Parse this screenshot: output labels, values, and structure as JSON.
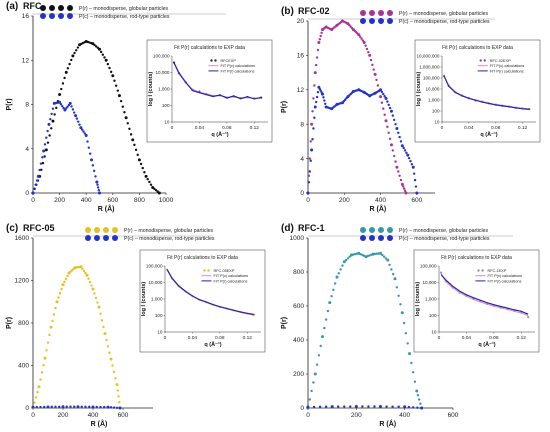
{
  "chart_data": [
    {
      "type": "scatter",
      "panel_label": "(a)",
      "sample_label": "RFC",
      "xlabel": "R (Å)",
      "ylabel": "P(r)",
      "xlim": [
        0,
        1000
      ],
      "ylim": [
        0,
        16
      ],
      "x_ticks": [
        0,
        200,
        400,
        600,
        800,
        1000
      ],
      "y_ticks": [
        0,
        4,
        8,
        12,
        16
      ],
      "legend": [
        "P(r) – monodisperse, globular particles",
        "P(c) – monodisperse, rod-type particles"
      ],
      "series": [
        {
          "name": "P(r) – monodisperse, globular particles",
          "color": "#111111",
          "x": [
            0,
            50,
            100,
            150,
            200,
            250,
            300,
            350,
            400,
            450,
            500,
            550,
            600,
            650,
            700,
            750,
            800,
            850,
            900,
            950
          ],
          "y": [
            0,
            1.5,
            3.9,
            6.5,
            8.9,
            10.9,
            12.4,
            13.4,
            13.7,
            13.5,
            13.0,
            12.0,
            10.6,
            8.8,
            6.8,
            4.8,
            3.0,
            1.5,
            0.5,
            0
          ]
        },
        {
          "name": "P(c) – monodisperse, rod-type particles",
          "color": "#2233cc",
          "x": [
            0,
            40,
            80,
            120,
            160,
            200,
            240,
            280,
            320,
            360,
            400,
            440,
            480,
            500
          ],
          "y": [
            0,
            1.5,
            3.8,
            6.2,
            8.1,
            8.2,
            7.5,
            8.1,
            7.0,
            5.9,
            5.2,
            3.0,
            1.0,
            0
          ]
        }
      ],
      "inset": {
        "title": "Fit P(r) calculations to EXP data",
        "xlabel": "q (Å⁻¹)",
        "ylabel": "log I (counts)",
        "x_ticks": [
          "0",
          "0.04",
          "0.08",
          "0.12"
        ],
        "y_ticks": [
          "10",
          "100",
          "1,000",
          "10,000",
          "100,000"
        ],
        "legend": [
          "RFCEXP",
          "FIT P(c) calculations",
          "FIT P(r) calculations"
        ],
        "xlim": [
          0,
          0.14
        ],
        "ylim_log": [
          1,
          5
        ],
        "series": [
          {
            "name": "RFCEXP",
            "color": "#333333",
            "x": [
              0.003,
              0.01,
              0.02,
              0.03,
              0.04,
              0.05,
              0.06,
              0.07,
              0.08,
              0.09,
              0.1,
              0.11,
              0.12,
              0.13
            ],
            "y": [
              40000,
              9000,
              2500,
              900,
              700,
              500,
              380,
              420,
              300,
              360,
              280,
              330,
              270,
              300
            ]
          },
          {
            "name": "FIT P(c) calculations",
            "color": "#dd88cc",
            "x": [
              0.003,
              0.01,
              0.02,
              0.03,
              0.04,
              0.05,
              0.06,
              0.07,
              0.08,
              0.09,
              0.1,
              0.11,
              0.12,
              0.13
            ],
            "y": [
              35000,
              8500,
              2400,
              950,
              650,
              520,
              400,
              380,
              330,
              320,
              300,
              290,
              280,
              270
            ]
          },
          {
            "name": "FIT P(r) calculations",
            "color": "#2222aa",
            "x": [
              0.003,
              0.01,
              0.02,
              0.03,
              0.04,
              0.05,
              0.06,
              0.07,
              0.08,
              0.09,
              0.1,
              0.11,
              0.12,
              0.13
            ],
            "y": [
              38000,
              9500,
              2600,
              800,
              600,
              450,
              350,
              430,
              280,
              380,
              260,
              340,
              250,
              310
            ]
          }
        ]
      }
    },
    {
      "type": "scatter",
      "panel_label": "(b)",
      "sample_label": "RFC-02",
      "xlabel": "R (Å)",
      "ylabel": "P(r)",
      "xlim": [
        0,
        700
      ],
      "ylim": [
        0,
        20
      ],
      "x_ticks": [
        0,
        200,
        400,
        600
      ],
      "y_ticks": [
        0,
        4,
        8,
        12,
        16,
        20
      ],
      "legend": [
        "P(r) – monodisperse, globular particles",
        "P(c) – monodisperse, rod-type particles"
      ],
      "series": [
        {
          "name": "P(r) – monodisperse, globular particles",
          "color": "#aa3399",
          "x": [
            0,
            20,
            40,
            60,
            80,
            100,
            130,
            160,
            190,
            220,
            250,
            280,
            310,
            340,
            370,
            400,
            430,
            460,
            490,
            520,
            540
          ],
          "y": [
            0,
            8.0,
            14.0,
            17.5,
            19.0,
            19.3,
            19.0,
            19.5,
            20.0,
            19.7,
            19.0,
            18.4,
            17.5,
            16.0,
            13.8,
            11.2,
            8.4,
            5.6,
            3.0,
            1.0,
            0
          ]
        },
        {
          "name": "P(c) – monodisperse, rod-type particles",
          "color": "#2233cc",
          "x": [
            0,
            20,
            40,
            60,
            80,
            100,
            130,
            160,
            190,
            220,
            250,
            280,
            310,
            340,
            370,
            400,
            430,
            460,
            490,
            520,
            550,
            580,
            600
          ],
          "y": [
            0,
            5.0,
            10.0,
            12.3,
            11.5,
            10.0,
            9.8,
            10.3,
            10.5,
            11.2,
            11.8,
            12.0,
            11.7,
            11.3,
            11.6,
            12.0,
            11.0,
            9.5,
            7.5,
            5.5,
            4.4,
            3.0,
            0
          ]
        }
      ],
      "inset": {
        "title": "Fit P(r) calculations to EXP data",
        "xlabel": "q (Å⁻¹)",
        "ylabel": "log I (counts)",
        "x_ticks": [
          "0",
          "0.04",
          "0.08",
          "0.12"
        ],
        "y_ticks": [
          "10",
          "100",
          "1,000",
          "10,000",
          "100,000",
          "1,000,000",
          "10,000,000"
        ],
        "legend": [
          "RFC-02EXP",
          "FIT P(c) calculations",
          "FIT P(r) calculations"
        ],
        "xlim": [
          0,
          0.14
        ],
        "ylim_log": [
          1,
          7
        ],
        "series": [
          {
            "name": "RFC-02EXP",
            "color": "#9944aa",
            "x": [
              0.003,
              0.01,
              0.02,
              0.03,
              0.04,
              0.05,
              0.06,
              0.07,
              0.08,
              0.09,
              0.1,
              0.11,
              0.12,
              0.13
            ],
            "y": [
              150000,
              20000,
              5000,
              2500,
              1500,
              900,
              700,
              500,
              380,
              300,
              250,
              200,
              170,
              150
            ]
          },
          {
            "name": "FIT P(c) calculations",
            "color": "#dd88cc",
            "x": [
              0.003,
              0.01,
              0.02,
              0.03,
              0.04,
              0.05,
              0.06,
              0.07,
              0.08,
              0.09,
              0.1,
              0.11,
              0.12,
              0.13
            ],
            "y": [
              140000,
              22000,
              5500,
              2600,
              1500,
              1000,
              700,
              520,
              400,
              320,
              260,
              210,
              180,
              160
            ]
          },
          {
            "name": "FIT P(r) calculations",
            "color": "#2222aa",
            "x": [
              0.003,
              0.01,
              0.02,
              0.03,
              0.04,
              0.05,
              0.06,
              0.07,
              0.08,
              0.09,
              0.1,
              0.11,
              0.12,
              0.13
            ],
            "y": [
              160000,
              18000,
              4800,
              2400,
              1400,
              950,
              650,
              480,
              360,
              290,
              240,
              190,
              160,
              140
            ]
          }
        ]
      }
    },
    {
      "type": "scatter",
      "panel_label": "(c)",
      "sample_label": "RFC-05",
      "xlabel": "R (Å)",
      "ylabel": "P(r)",
      "xlim": [
        0,
        800
      ],
      "ylim": [
        0,
        1600
      ],
      "x_ticks": [
        0,
        200,
        400,
        600
      ],
      "y_ticks": [
        0,
        400,
        800,
        1200,
        1600
      ],
      "legend": [
        "P(r) – monodisperse, globular particles",
        "P(c) – monodisperse, rod-type particles"
      ],
      "series": [
        {
          "name": "P(r) – monodisperse, globular particles",
          "color": "#e8c020",
          "x": [
            0,
            40,
            80,
            120,
            160,
            200,
            240,
            280,
            320,
            360,
            400,
            440,
            480,
            520,
            560,
            580
          ],
          "y": [
            0,
            200,
            470,
            760,
            1000,
            1160,
            1270,
            1320,
            1330,
            1250,
            1120,
            950,
            700,
            460,
            220,
            0
          ]
        },
        {
          "name": "P(c) – monodisperse, rod-type particles",
          "color": "#2233cc",
          "x": [
            0,
            100,
            200,
            300,
            400,
            500,
            580
          ],
          "y": [
            8,
            10,
            12,
            12,
            10,
            8,
            0
          ]
        }
      ],
      "inset": {
        "title": "Fit P(r) calculations to EXP data",
        "xlabel": "q (Å⁻¹)",
        "ylabel": "log I (counts)",
        "x_ticks": [
          "0",
          "0.04",
          "0.08",
          "0.12"
        ],
        "y_ticks": [
          "10",
          "100",
          "1,000",
          "10,000",
          "100,000"
        ],
        "legend": [
          "RFC-05EXP",
          "FIT P(c) calculations",
          "FIT P(r) calculations"
        ],
        "xlim": [
          0,
          0.14
        ],
        "ylim_log": [
          1,
          5
        ],
        "series": [
          {
            "name": "RFC-05EXP",
            "color": "#e8c020",
            "x": [
              0.003,
              0.01,
              0.02,
              0.03,
              0.04,
              0.05,
              0.06,
              0.07,
              0.08,
              0.09,
              0.1,
              0.11,
              0.12,
              0.13
            ],
            "y": [
              60000,
              18000,
              6000,
              2800,
              1500,
              900,
              650,
              450,
              330,
              260,
              200,
              160,
              130,
              110
            ]
          },
          {
            "name": "FIT P(c) calculations",
            "color": "#dd88cc",
            "x": [
              0.003,
              0.01,
              0.02,
              0.03,
              0.04,
              0.05,
              0.06,
              0.07,
              0.08,
              0.09,
              0.1,
              0.11,
              0.12,
              0.13
            ],
            "y": [
              58000,
              17000,
              5800,
              2700,
              1450,
              880,
              620,
              440,
              320,
              250,
              195,
              155,
              125,
              105
            ]
          },
          {
            "name": "FIT P(r) calculations",
            "color": "#2222aa",
            "x": [
              0.003,
              0.01,
              0.02,
              0.03,
              0.04,
              0.05,
              0.06,
              0.07,
              0.08,
              0.09,
              0.1,
              0.11,
              0.12,
              0.13
            ],
            "y": [
              62000,
              19000,
              6200,
              2900,
              1550,
              920,
              670,
              460,
              340,
              270,
              210,
              165,
              135,
              115
            ]
          }
        ]
      }
    },
    {
      "type": "scatter",
      "panel_label": "(d)",
      "sample_label": "RFC-1",
      "xlabel": "R (Å)",
      "ylabel": "P(r)",
      "xlim": [
        0,
        600
      ],
      "ylim": [
        0,
        1000
      ],
      "x_ticks": [
        0,
        200,
        400,
        600
      ],
      "y_ticks": [
        0,
        200,
        400,
        600,
        800,
        1000
      ],
      "legend": [
        "P(r) – monodisperse, globular particles",
        "P(c) – monodisperse, rod-type particles"
      ],
      "series": [
        {
          "name": "P(r) – monodisperse, globular particles",
          "color": "#3399aa",
          "x": [
            0,
            30,
            60,
            90,
            120,
            150,
            180,
            210,
            240,
            270,
            300,
            330,
            360,
            390,
            420,
            450,
            470
          ],
          "y": [
            0,
            200,
            420,
            620,
            770,
            860,
            900,
            910,
            890,
            905,
            910,
            870,
            760,
            560,
            320,
            100,
            0
          ]
        },
        {
          "name": "P(c) – monodisperse, rod-type particles",
          "color": "#2233cc",
          "x": [
            0,
            100,
            200,
            300,
            400,
            470
          ],
          "y": [
            6,
            8,
            9,
            9,
            7,
            0
          ]
        }
      ],
      "inset": {
        "title": "Fit P(r) calculations to EXP data",
        "xlabel": "q (Å⁻¹)",
        "ylabel": "log I (counts)",
        "x_ticks": [
          "0",
          "0.04",
          "0.08",
          "0.12"
        ],
        "y_ticks": [
          "10",
          "100",
          "1,000",
          "10,000",
          "100,000"
        ],
        "legend": [
          "RFC-1EXP",
          "FIT P(c) calculations",
          "FIT P(r) calculations"
        ],
        "xlim": [
          0,
          0.14
        ],
        "ylim_log": [
          1,
          5
        ],
        "series": [
          {
            "name": "RFC-1EXP",
            "color": "#8899aa",
            "x": [
              0.003,
              0.01,
              0.02,
              0.03,
              0.04,
              0.05,
              0.06,
              0.07,
              0.08,
              0.09,
              0.1,
              0.11,
              0.12,
              0.13
            ],
            "y": [
              40000,
              12000,
              5000,
              2500,
              1500,
              1000,
              700,
              500,
              380,
              300,
              240,
              190,
              150,
              80
            ]
          },
          {
            "name": "FIT P(c) calculations",
            "color": "#dd88cc",
            "x": [
              0.003,
              0.01,
              0.02,
              0.03,
              0.04,
              0.05,
              0.06,
              0.07,
              0.08,
              0.09,
              0.1,
              0.11,
              0.12,
              0.13
            ],
            "y": [
              35000,
              11000,
              4800,
              2400,
              1450,
              950,
              680,
              490,
              370,
              290,
              230,
              180,
              140,
              100
            ]
          },
          {
            "name": "FIT P(r) calculations",
            "color": "#2222aa",
            "x": [
              0.003,
              0.01,
              0.02,
              0.03,
              0.04,
              0.05,
              0.06,
              0.07,
              0.08,
              0.09,
              0.1,
              0.11,
              0.12,
              0.13
            ],
            "y": [
              30000,
              14000,
              6000,
              3000,
              1800,
              1200,
              850,
              600,
              450,
              350,
              280,
              220,
              180,
              120
            ]
          }
        ]
      }
    }
  ]
}
